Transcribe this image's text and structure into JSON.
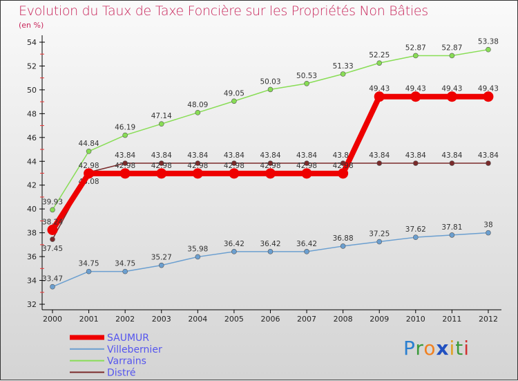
{
  "chart_data": {
    "type": "line",
    "title": "Evolution du Taux de Taxe Foncière sur les Propriétés Non Bâties",
    "subtitle": "(en %)",
    "x": [
      "2000",
      "2001",
      "2002",
      "2003",
      "2004",
      "2005",
      "2006",
      "2007",
      "2008",
      "2009",
      "2010",
      "2011",
      "2012"
    ],
    "ylim": [
      32,
      54
    ],
    "yticks": [
      "32",
      "34",
      "36",
      "38",
      "40",
      "42",
      "44",
      "46",
      "48",
      "50",
      "52",
      "54"
    ],
    "series": [
      {
        "name": "SAUMUR",
        "color": "#ee0000",
        "values": [
          38.24,
          42.98,
          42.98,
          42.98,
          42.98,
          42.98,
          42.98,
          42.98,
          42.98,
          49.43,
          49.43,
          49.43,
          49.43
        ]
      },
      {
        "name": "Villebernier",
        "color": "#6b9fd0",
        "values": [
          33.47,
          34.75,
          34.75,
          35.27,
          35.98,
          36.42,
          36.42,
          36.42,
          36.88,
          37.25,
          37.62,
          37.81,
          38
        ]
      },
      {
        "name": "Varrains",
        "color": "#88dd55",
        "values": [
          39.93,
          44.84,
          46.19,
          47.14,
          48.09,
          49.05,
          50.03,
          50.53,
          51.33,
          52.25,
          52.87,
          52.87,
          53.38
        ]
      },
      {
        "name": "Distré",
        "color": "#7a2a2a",
        "values": [
          37.45,
          43.08,
          43.84,
          43.84,
          43.84,
          43.84,
          43.84,
          43.84,
          43.84,
          43.84,
          43.84,
          43.84,
          43.84
        ]
      }
    ]
  },
  "logo": "Proxiti"
}
